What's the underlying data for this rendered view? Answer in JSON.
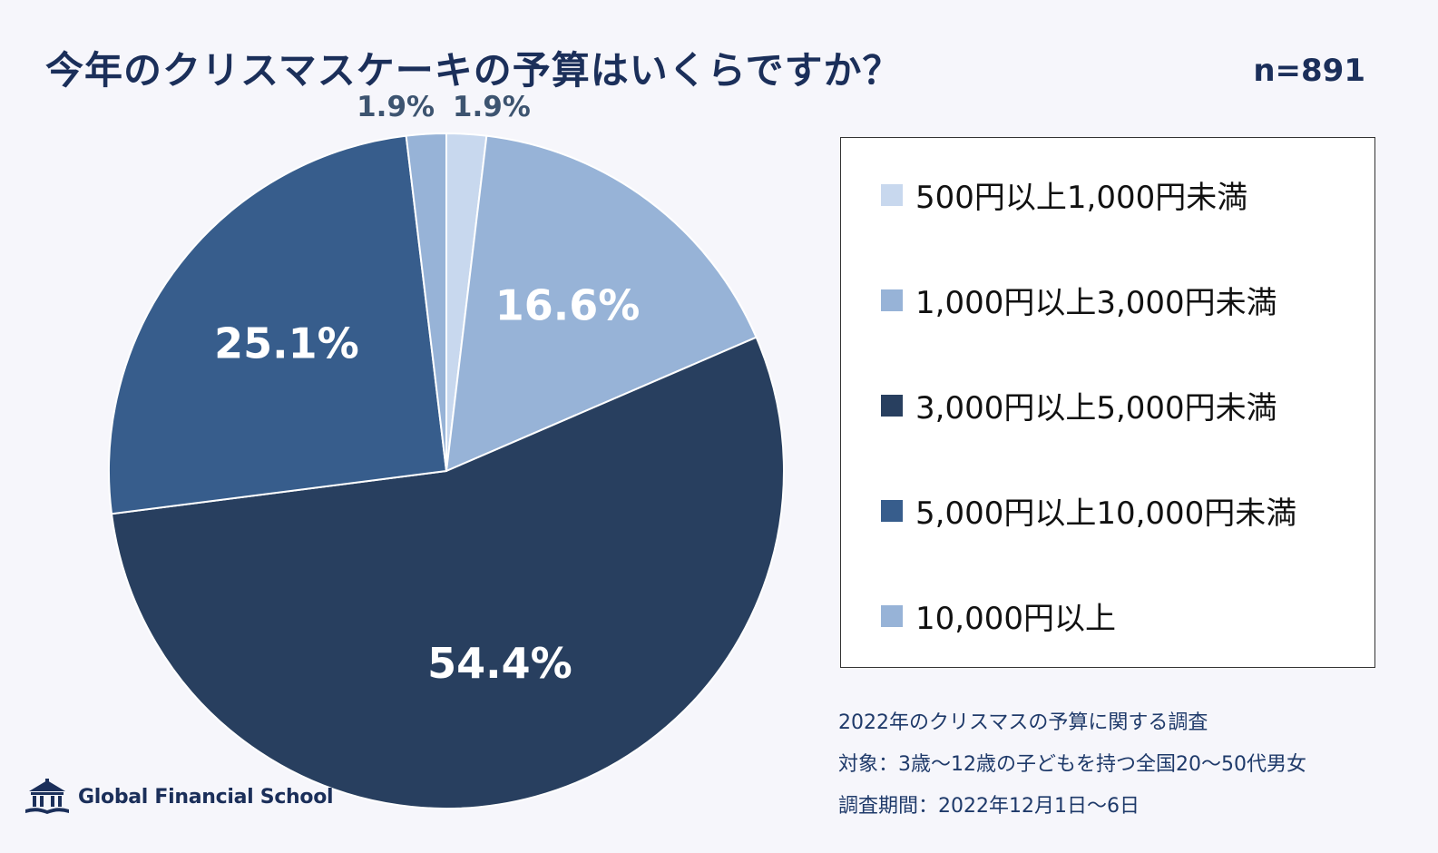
{
  "title": "今年のクリスマスケーキの予算はいくらですか？",
  "sample_size": "n=891",
  "chart_data": {
    "type": "pie",
    "title": "今年のクリスマスケーキの予算はいくらですか？",
    "categories": [
      "500円以上1,000円未満",
      "1,000円以上3,000円未満",
      "3,000円以上5,000円未満",
      "5,000円以上10,000円未満",
      "10,000円以上"
    ],
    "values": [
      1.9,
      16.6,
      54.4,
      25.1,
      1.9
    ],
    "labels": [
      "1.9%",
      "16.6%",
      "54.4%",
      "25.1%",
      "1.9%"
    ],
    "colors": [
      "#c8d8ee",
      "#97b3d7",
      "#283f5f",
      "#375d8c",
      "#97b3d7"
    ],
    "label_colors": [
      "#3d5470",
      "#ffffff",
      "#ffffff",
      "#ffffff",
      "#3d5470"
    ],
    "start": "12 o'clock",
    "direction": "clockwise",
    "legend_position": "right"
  },
  "legend": {
    "items": [
      {
        "label": "500円以上1,000円未満",
        "color": "#c8d8ee"
      },
      {
        "label": "1,000円以上3,000円未満",
        "color": "#97b3d7"
      },
      {
        "label": "3,000円以上5,000円未満",
        "color": "#283f5f"
      },
      {
        "label": "5,000円以上10,000円未満",
        "color": "#375d8c"
      },
      {
        "label": "10,000円以上",
        "color": "#97b3d7"
      }
    ]
  },
  "notes": {
    "survey": "2022年のクリスマスの予算に関する調査",
    "target": "対象：3歳～12歳の子どもを持つ全国20～50代男女",
    "period": "調査期間：2022年12月1日～6日"
  },
  "brand": {
    "name": "Global Financial School",
    "icon": "school-building-icon"
  }
}
